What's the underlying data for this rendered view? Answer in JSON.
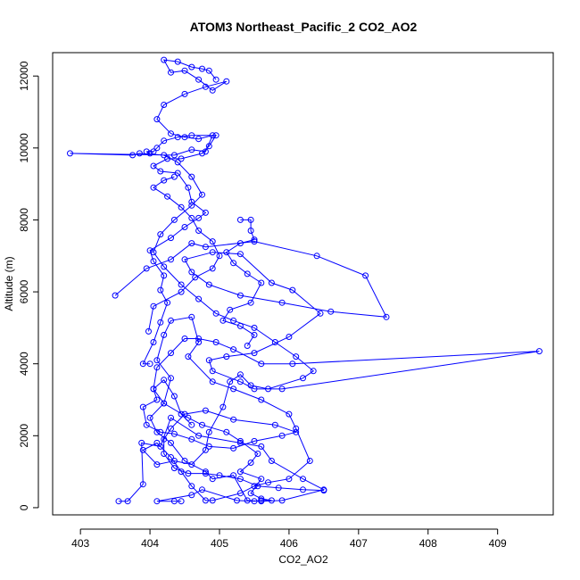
{
  "chart_data": {
    "type": "line",
    "title": "ATOM3 Northeast_Pacific_2 CO2_AO2",
    "xlabel": "CO2_AO2",
    "ylabel": "Altitude (m)",
    "xlim": [
      402.6,
      409.8
    ],
    "ylim": [
      -200,
      12650
    ],
    "x_ticks": [
      "403",
      "404",
      "405",
      "406",
      "407",
      "408",
      "409"
    ],
    "y_ticks": [
      "0",
      "2000",
      "4000",
      "6000",
      "8000",
      "10000",
      "12000"
    ],
    "grid": false,
    "legend": "none",
    "markers": "open circles",
    "series": [
      {
        "color": "#0000ff",
        "points": [
          [
            403.55,
            180
          ],
          [
            403.68,
            180
          ],
          [
            403.9,
            650
          ],
          [
            403.88,
            1800
          ],
          [
            404.15,
            1700
          ],
          [
            404.3,
            2500
          ],
          [
            404.7,
            2000
          ],
          [
            405.3,
            1800
          ],
          [
            405.6,
            1700
          ],
          [
            405.75,
            1300
          ],
          [
            406.2,
            800
          ],
          [
            406.5,
            500
          ],
          [
            405.9,
            200
          ],
          [
            405.6,
            180
          ],
          [
            405.4,
            200
          ],
          [
            405.2,
            900
          ],
          [
            404.9,
            800
          ],
          [
            404.8,
            1000
          ],
          [
            404.5,
            1300
          ],
          [
            404.3,
            1800
          ],
          [
            404.1,
            2100
          ],
          [
            404.0,
            2500
          ],
          [
            404.2,
            2900
          ],
          [
            404.3,
            3600
          ],
          [
            404.1,
            4100
          ],
          [
            404.2,
            4800
          ],
          [
            404.3,
            5200
          ],
          [
            404.6,
            5300
          ],
          [
            404.7,
            4600
          ],
          [
            404.55,
            4200
          ],
          [
            404.9,
            3500
          ],
          [
            405.2,
            3300
          ],
          [
            405.6,
            3000
          ],
          [
            406.0,
            2600
          ],
          [
            406.1,
            2200
          ],
          [
            406.3,
            1300
          ],
          [
            406.0,
            800
          ],
          [
            405.7,
            700
          ],
          [
            405.5,
            600
          ],
          [
            405.3,
            400
          ],
          [
            404.9,
            200
          ],
          [
            404.8,
            200
          ],
          [
            404.6,
            600
          ],
          [
            404.45,
            1000
          ],
          [
            404.3,
            1400
          ],
          [
            404.1,
            1800
          ],
          [
            403.9,
            1600
          ],
          [
            404.1,
            1200
          ],
          [
            404.35,
            1300
          ],
          [
            404.6,
            1200
          ],
          [
            404.8,
            1600
          ],
          [
            404.85,
            2100
          ],
          [
            405.05,
            2800
          ],
          [
            405.15,
            3500
          ],
          [
            405.3,
            3700
          ],
          [
            405.45,
            3400
          ],
          [
            405.7,
            3300
          ],
          [
            406.2,
            3600
          ],
          [
            406.35,
            3800
          ],
          [
            406.1,
            4200
          ],
          [
            405.8,
            4600
          ],
          [
            405.5,
            5000
          ],
          [
            405.2,
            5200
          ],
          [
            404.95,
            5400
          ],
          [
            404.7,
            5800
          ],
          [
            404.45,
            6200
          ],
          [
            404.2,
            6700
          ],
          [
            404.05,
            7100
          ],
          [
            404.15,
            7600
          ],
          [
            404.35,
            8000
          ],
          [
            404.6,
            8400
          ],
          [
            404.75,
            8700
          ],
          [
            404.6,
            9200
          ],
          [
            404.4,
            9600
          ],
          [
            404.2,
            9800
          ],
          [
            403.85,
            9850
          ],
          [
            403.75,
            9800
          ],
          [
            402.85,
            9850
          ],
          [
            404.35,
            9800
          ],
          [
            404.6,
            9950
          ],
          [
            404.8,
            9900
          ],
          [
            404.9,
            10350
          ],
          [
            404.7,
            10250
          ],
          [
            404.5,
            10300
          ],
          [
            404.3,
            10400
          ],
          [
            404.1,
            10800
          ],
          [
            404.2,
            11200
          ],
          [
            404.5,
            11500
          ],
          [
            404.8,
            11700
          ],
          [
            405.1,
            11850
          ],
          [
            404.9,
            11600
          ],
          [
            404.7,
            11900
          ],
          [
            404.5,
            12150
          ],
          [
            404.3,
            12100
          ],
          [
            404.2,
            12450
          ],
          [
            404.4,
            12400
          ],
          [
            404.6,
            12250
          ],
          [
            404.75,
            12200
          ],
          [
            404.85,
            12150
          ],
          [
            404.95,
            11900
          ]
        ]
      },
      {
        "color": "#0000ff",
        "points": [
          [
            403.5,
            5900
          ],
          [
            403.95,
            6650
          ],
          [
            404.3,
            6900
          ],
          [
            404.6,
            7350
          ],
          [
            404.8,
            7250
          ],
          [
            405.5,
            7400
          ],
          [
            406.4,
            7000
          ],
          [
            407.1,
            6450
          ],
          [
            407.4,
            5300
          ],
          [
            406.6,
            5450
          ],
          [
            405.9,
            5700
          ],
          [
            405.3,
            5900
          ],
          [
            404.85,
            6200
          ],
          [
            404.6,
            6550
          ],
          [
            404.5,
            6900
          ],
          [
            404.9,
            7100
          ],
          [
            405.3,
            7050
          ],
          [
            405.75,
            6250
          ],
          [
            406.05,
            6050
          ],
          [
            406.45,
            5400
          ],
          [
            406.0,
            4750
          ],
          [
            405.5,
            4300
          ],
          [
            405.1,
            4200
          ],
          [
            404.85,
            4100
          ],
          [
            404.9,
            3800
          ],
          [
            405.3,
            3500
          ],
          [
            405.5,
            3300
          ],
          [
            405.9,
            3300
          ],
          [
            409.6,
            4350
          ],
          [
            406.05,
            4000
          ],
          [
            405.6,
            4000
          ],
          [
            405.2,
            4400
          ],
          [
            404.95,
            4600
          ],
          [
            404.7,
            4700
          ],
          [
            404.5,
            4700
          ],
          [
            404.3,
            4300
          ],
          [
            404.1,
            3900
          ],
          [
            404.05,
            3300
          ],
          [
            404.1,
            3000
          ],
          [
            403.9,
            2800
          ],
          [
            403.95,
            2300
          ],
          [
            404.15,
            2100
          ],
          [
            404.35,
            2050
          ],
          [
            404.6,
            1900
          ],
          [
            404.85,
            1700
          ],
          [
            405.2,
            1650
          ],
          [
            405.5,
            1850
          ],
          [
            405.9,
            2000
          ],
          [
            406.1,
            2100
          ],
          [
            405.8,
            2300
          ],
          [
            405.2,
            2450
          ],
          [
            404.8,
            2700
          ],
          [
            404.5,
            2600
          ],
          [
            404.3,
            2200
          ],
          [
            404.2,
            1900
          ],
          [
            404.2,
            1500
          ],
          [
            404.35,
            1100
          ],
          [
            404.55,
            950
          ],
          [
            404.8,
            950
          ],
          [
            405.0,
            900
          ],
          [
            405.3,
            800
          ],
          [
            405.55,
            600
          ],
          [
            405.85,
            550
          ],
          [
            406.2,
            500
          ],
          [
            406.5,
            480
          ]
        ]
      },
      {
        "color": "#0000ff",
        "points": [
          [
            404.0,
            4000
          ],
          [
            403.9,
            4000
          ],
          [
            404.05,
            4600
          ],
          [
            404.15,
            5150
          ],
          [
            404.25,
            5700
          ],
          [
            404.15,
            6050
          ],
          [
            404.2,
            6450
          ],
          [
            404.05,
            6850
          ],
          [
            404.0,
            7150
          ],
          [
            404.3,
            7500
          ],
          [
            404.5,
            7800
          ],
          [
            404.7,
            8050
          ],
          [
            404.8,
            8200
          ],
          [
            404.6,
            8500
          ],
          [
            404.55,
            8900
          ],
          [
            404.4,
            9300
          ],
          [
            404.15,
            9350
          ],
          [
            404.05,
            9500
          ],
          [
            404.25,
            9700
          ],
          [
            404.45,
            9700
          ],
          [
            404.75,
            9850
          ],
          [
            404.85,
            10050
          ],
          [
            404.95,
            10350
          ],
          [
            404.6,
            10350
          ],
          [
            404.4,
            10300
          ],
          [
            404.2,
            10200
          ],
          [
            404.1,
            10000
          ],
          [
            404.05,
            9900
          ],
          [
            403.95,
            9900
          ],
          [
            404.0,
            9850
          ]
        ]
      },
      {
        "color": "#0000ff",
        "points": [
          [
            405.3,
            8000
          ],
          [
            405.45,
            8000
          ],
          [
            405.45,
            7700
          ],
          [
            405.5,
            7450
          ],
          [
            405.3,
            7350
          ],
          [
            405.1,
            7100
          ],
          [
            405.2,
            6800
          ],
          [
            405.4,
            6500
          ],
          [
            405.6,
            6250
          ],
          [
            405.45,
            5700
          ],
          [
            405.15,
            5500
          ],
          [
            405.05,
            5200
          ],
          [
            405.3,
            5050
          ],
          [
            405.5,
            4800
          ],
          [
            405.4,
            4500
          ]
        ]
      },
      {
        "color": "#0000ff",
        "points": [
          [
            403.98,
            4900
          ],
          [
            404.05,
            5600
          ],
          [
            404.45,
            6000
          ],
          [
            404.65,
            6400
          ],
          [
            404.9,
            6650
          ],
          [
            405.0,
            7000
          ],
          [
            404.9,
            7400
          ],
          [
            404.7,
            7700
          ],
          [
            404.6,
            8050
          ],
          [
            404.45,
            8350
          ],
          [
            404.25,
            8650
          ],
          [
            404.05,
            8900
          ],
          [
            404.2,
            9100
          ],
          [
            404.35,
            9200
          ]
        ]
      },
      {
        "color": "#0000ff",
        "points": [
          [
            404.45,
            180
          ],
          [
            404.35,
            180
          ],
          [
            404.1,
            180
          ],
          [
            404.6,
            350
          ],
          [
            404.75,
            500
          ],
          [
            405.25,
            200
          ],
          [
            405.5,
            180
          ],
          [
            405.6,
            200
          ],
          [
            405.75,
            200
          ],
          [
            405.6,
            250
          ],
          [
            405.45,
            400
          ],
          [
            405.6,
            800
          ],
          [
            405.3,
            1000
          ],
          [
            405.45,
            1250
          ],
          [
            405.55,
            1500
          ],
          [
            405.3,
            1850
          ],
          [
            405.1,
            2100
          ],
          [
            404.75,
            2300
          ],
          [
            404.55,
            2500
          ],
          [
            404.2,
            2900
          ],
          [
            404.05,
            3300
          ],
          [
            404.2,
            3550
          ],
          [
            404.35,
            3100
          ],
          [
            404.45,
            2600
          ],
          [
            404.6,
            2300
          ]
        ]
      }
    ]
  }
}
